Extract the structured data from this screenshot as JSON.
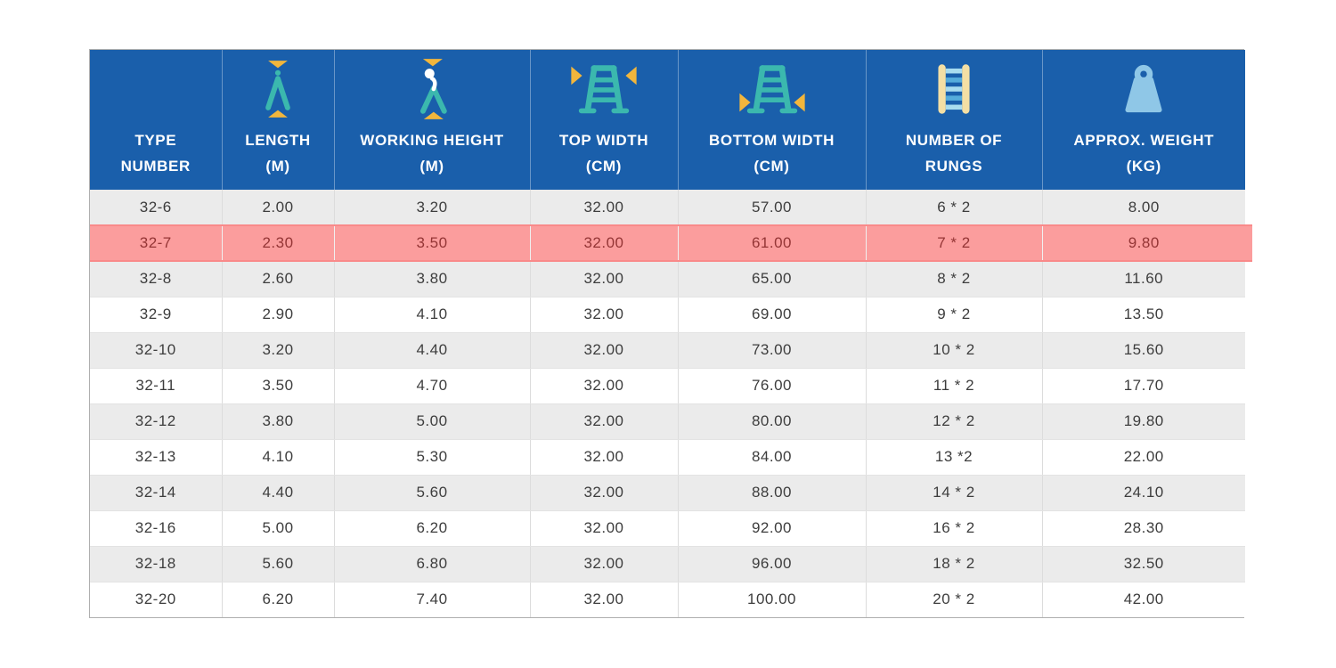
{
  "theme": {
    "page_bg": "#FFFFFF",
    "header_bg": "#1A5FAB",
    "header_text": "#FFFFFF",
    "row_bg": "#FFFFFF",
    "row_alt_bg": "#EBEBEB",
    "row_text": "#3D3D3D",
    "highlight_bg": "#FB9D9D",
    "highlight_edge": "#F98A8A",
    "highlight_text": "#943535",
    "outer_border": "#AFAFAF",
    "grid_v": "#DCDCDC",
    "grid_h": "#E3E3E3",
    "icon_teal": "#3BB8AE",
    "icon_yellow": "#F2B63C",
    "icon_cream": "#F4DFA4",
    "icon_light_blue": "#8FC7E7",
    "icon_rung_light": "#A8DCEF",
    "icon_rung_dark": "#55ACDB",
    "icon_white": "#FFFFFF"
  },
  "table": {
    "columns": [
      {
        "id": "type",
        "line1": "TYPE",
        "line2": "NUMBER",
        "icon": null
      },
      {
        "id": "length",
        "line1": "LENGTH",
        "line2": "(M)",
        "icon": "length-icon"
      },
      {
        "id": "working_height",
        "line1": "WORKING HEIGHT",
        "line2": "(M)",
        "icon": "working-height-icon"
      },
      {
        "id": "top_width",
        "line1": "TOP WIDTH",
        "line2": "(CM)",
        "icon": "top-width-icon"
      },
      {
        "id": "bottom_width",
        "line1": "BOTTOM WIDTH",
        "line2": "(CM)",
        "icon": "bottom-width-icon"
      },
      {
        "id": "rungs",
        "line1": "NUMBER OF",
        "line2": "RUNGS",
        "icon": "rungs-icon"
      },
      {
        "id": "weight",
        "line1": "APPROX. WEIGHT",
        "line2": "(KG)",
        "icon": "weight-icon"
      }
    ],
    "highlighted_row": "32-7",
    "rows": [
      {
        "highlighted": false,
        "cells": [
          "32-6",
          "2.00",
          "3.20",
          "32.00",
          "57.00",
          "6 * 2",
          "8.00"
        ]
      },
      {
        "highlighted": true,
        "cells": [
          "32-7",
          "2.30",
          "3.50",
          "32.00",
          "61.00",
          "7 * 2",
          "9.80"
        ]
      },
      {
        "highlighted": false,
        "cells": [
          "32-8",
          "2.60",
          "3.80",
          "32.00",
          "65.00",
          "8 * 2",
          "11.60"
        ]
      },
      {
        "highlighted": false,
        "cells": [
          "32-9",
          "2.90",
          "4.10",
          "32.00",
          "69.00",
          "9 * 2",
          "13.50"
        ]
      },
      {
        "highlighted": false,
        "cells": [
          "32-10",
          "3.20",
          "4.40",
          "32.00",
          "73.00",
          "10 * 2",
          "15.60"
        ]
      },
      {
        "highlighted": false,
        "cells": [
          "32-11",
          "3.50",
          "4.70",
          "32.00",
          "76.00",
          "11 * 2",
          "17.70"
        ]
      },
      {
        "highlighted": false,
        "cells": [
          "32-12",
          "3.80",
          "5.00",
          "32.00",
          "80.00",
          "12 * 2",
          "19.80"
        ]
      },
      {
        "highlighted": false,
        "cells": [
          "32-13",
          "4.10",
          "5.30",
          "32.00",
          "84.00",
          "13 *2",
          "22.00"
        ]
      },
      {
        "highlighted": false,
        "cells": [
          "32-14",
          "4.40",
          "5.60",
          "32.00",
          "88.00",
          "14 * 2",
          "24.10"
        ]
      },
      {
        "highlighted": false,
        "cells": [
          "32-16",
          "5.00",
          "6.20",
          "32.00",
          "92.00",
          "16 * 2",
          "28.30"
        ]
      },
      {
        "highlighted": false,
        "cells": [
          "32-18",
          "5.60",
          "6.80",
          "32.00",
          "96.00",
          "18 * 2",
          "32.50"
        ]
      },
      {
        "highlighted": false,
        "cells": [
          "32-20",
          "6.20",
          "7.40",
          "32.00",
          "100.00",
          "20 * 2",
          "42.00"
        ]
      }
    ]
  }
}
